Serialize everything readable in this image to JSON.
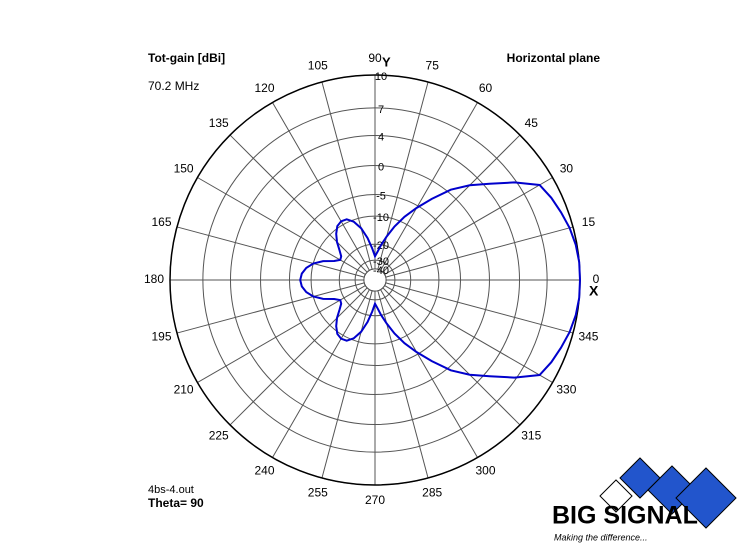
{
  "chart_data": {
    "type": "polar",
    "title": "Tot-gain [dBi]",
    "subtitle": "70.2 MHz",
    "plane": "Horizontal plane",
    "x_axis_label": "X",
    "y_axis_label": "Y",
    "file": "4bs-4.out",
    "theta_label": "Theta= 90",
    "theta": [
      0,
      5,
      10,
      15,
      20,
      25,
      30,
      35,
      40,
      45,
      50,
      55,
      60,
      65,
      70,
      75,
      80,
      85,
      90,
      95,
      100,
      105,
      110,
      115,
      120,
      125,
      130,
      135,
      140,
      145,
      150,
      155,
      160,
      165,
      170,
      175,
      180,
      185,
      190,
      195,
      200,
      205,
      210,
      215,
      220,
      225,
      230,
      235,
      240,
      245,
      250,
      255,
      260,
      265,
      270,
      275,
      280,
      285,
      290,
      295,
      300,
      305,
      310,
      315,
      320,
      325,
      330,
      335,
      340,
      345,
      350,
      355
    ],
    "series": [
      {
        "color": "#0000cc",
        "values": [
          10,
          10,
          9.9,
          9.7,
          9.4,
          9.1,
          8.7,
          6.8,
          4.6,
          2.7,
          0.5,
          -2.5,
          -5.5,
          -8.5,
          -12,
          -16,
          -20,
          -24,
          -27,
          -22,
          -17,
          -13,
          -10.5,
          -9.2,
          -9,
          -9.5,
          -11,
          -13,
          -15.5,
          -17.5,
          -18,
          -16,
          -12.5,
          -10,
          -8.5,
          -7.6,
          -7.3,
          -7.6,
          -8.5,
          -10,
          -12.5,
          -16,
          -18,
          -17.5,
          -15.5,
          -13,
          -11,
          -9.5,
          -9,
          -9.2,
          -10.5,
          -13,
          -17,
          -22,
          -27,
          -24,
          -20,
          -16,
          -12,
          -8.5,
          -5.5,
          -2.5,
          0.5,
          2.7,
          4.6,
          6.8,
          8.7,
          9.1,
          9.4,
          9.7,
          9.9,
          10
        ]
      }
    ],
    "rlim": [
      -40,
      10
    ],
    "rticks": [
      10,
      7,
      4,
      0,
      -5,
      -10,
      -20,
      -30,
      -40
    ],
    "radial_scale": "arrl-log",
    "angle_ticks": [
      0,
      15,
      30,
      45,
      60,
      75,
      90,
      105,
      120,
      135,
      150,
      165,
      180,
      195,
      210,
      225,
      240,
      255,
      270,
      285,
      300,
      315,
      330,
      345
    ],
    "grid": true
  },
  "logo": {
    "name": "BIG SIGNAL",
    "tagline": "Making the difference..."
  }
}
